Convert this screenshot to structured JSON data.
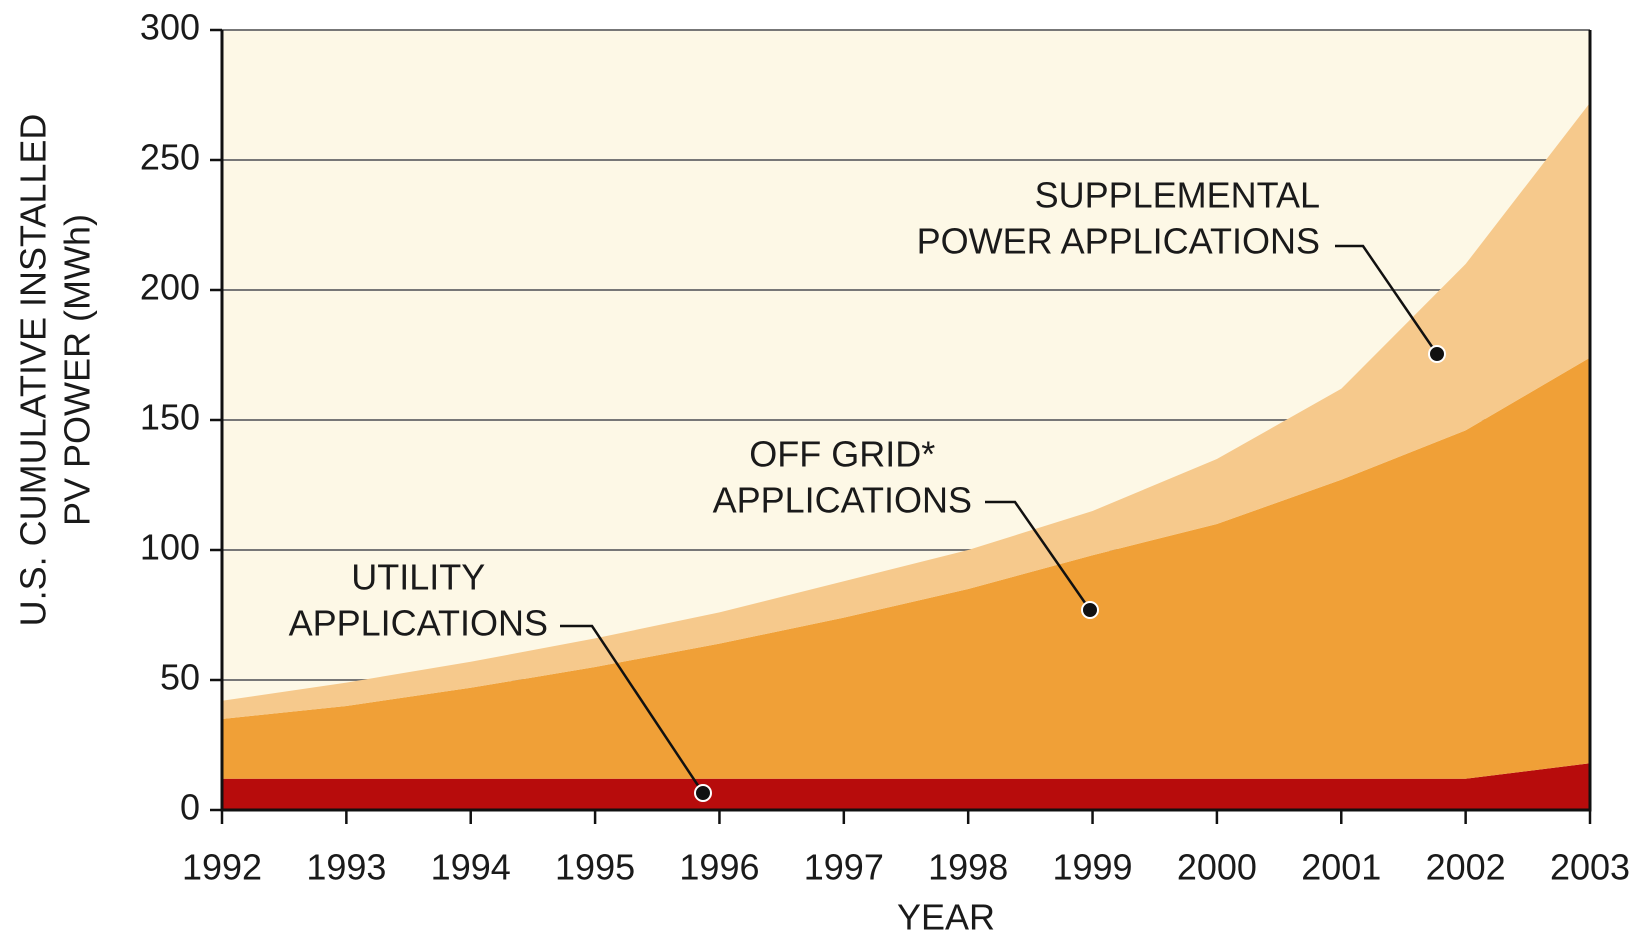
{
  "chart_data": {
    "type": "stacked_area",
    "x": [
      1992,
      1993,
      1994,
      1995,
      1996,
      1997,
      1998,
      1999,
      2000,
      2001,
      2002,
      2003
    ],
    "series": [
      {
        "name": "UTILITY APPLICATIONS",
        "color": "#b70c0c",
        "values": [
          12,
          12,
          12,
          12,
          12,
          12,
          12,
          12,
          12,
          12,
          12,
          18
        ]
      },
      {
        "name": "OFF GRID* APPLICATIONS",
        "color": "#f0a037",
        "values": [
          23,
          28,
          35,
          43,
          52,
          62,
          73,
          86,
          98,
          115,
          134,
          156
        ]
      },
      {
        "name": "SUPPLEMENTAL POWER APPLICATIONS",
        "color": "#f6c98c",
        "values": [
          7,
          9,
          10,
          11,
          12,
          14,
          15,
          17,
          25,
          35,
          64,
          98
        ]
      }
    ],
    "annotations": [
      {
        "lines": [
          "UTILITY",
          "APPLICATIONS"
        ]
      },
      {
        "lines": [
          "OFF GRID*",
          "APPLICATIONS"
        ]
      },
      {
        "lines": [
          "SUPPLEMENTAL",
          "POWER APPLICATIONS"
        ]
      }
    ],
    "x_label": "YEAR",
    "y_label": [
      "U.S. CUMULATIVE INSTALLED",
      "PV POWER (MWh)"
    ],
    "xlim": [
      1992,
      2003
    ],
    "xticks": [
      1992,
      1993,
      1994,
      1995,
      1996,
      1997,
      1998,
      1999,
      2000,
      2001,
      2002,
      2003
    ],
    "ylim": [
      0,
      300
    ],
    "yticks": [
      0,
      50,
      100,
      150,
      200,
      250,
      300
    ],
    "grid": true,
    "background": "#fdf8e6"
  }
}
